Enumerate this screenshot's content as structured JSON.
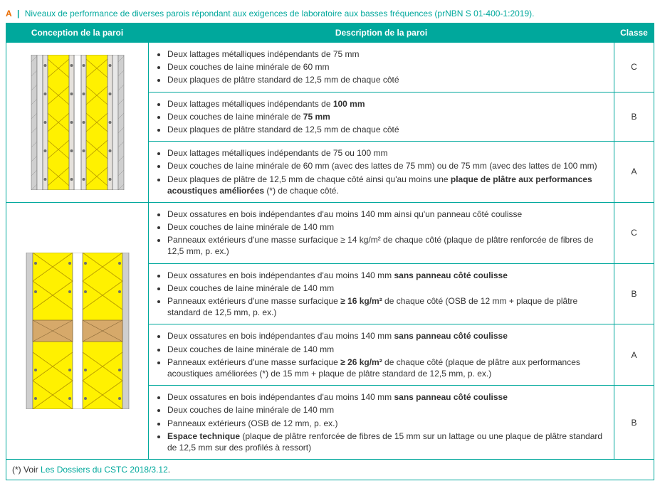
{
  "colors": {
    "teal": "#00a89c",
    "orange": "#e96c00",
    "text": "#333333",
    "insulation": "#fff100",
    "steel_stud": "#e5e1dc",
    "steel_stud_dot": "#707070",
    "wood": "#d6a96a",
    "plaster": "#cfcfcf",
    "background": "#ffffff"
  },
  "title": {
    "label": "A",
    "sep": "|",
    "text": "Niveaux de performance de diverses parois répondant aux exigences de laboratoire aux basses fréquences (prNBN S 01-400-1:2019)."
  },
  "headers": {
    "conception": "Conception de la paroi",
    "description": "Description de la paroi",
    "classe": "Classe"
  },
  "rows": [
    {
      "items": [
        "Deux lattages métalliques indépendants de 75 mm",
        "Deux couches de laine minérale de 60 mm",
        "Deux plaques de plâtre standard de 12,5 mm de chaque côté"
      ],
      "classe": "C"
    },
    {
      "items": [
        "Deux lattages métalliques indépendants de <b>100 mm</b>",
        "Deux couches de laine minérale de <b>75 mm</b>",
        "Deux plaques de plâtre standard de 12,5 mm de chaque côté"
      ],
      "classe": "B"
    },
    {
      "items": [
        "Deux lattages métalliques indépendants de 75 ou 100 mm",
        "Deux couches de laine minérale de 60 mm (avec des lattes de 75 mm) ou de 75 mm (avec des lattes de 100 mm)",
        "Deux plaques de plâtre de 12,5 mm de chaque côté ainsi qu'au moins une <b>plaque de plâtre aux performances acoustiques améliorées</b> (*) de chaque côté."
      ],
      "classe": "A"
    },
    {
      "items": [
        "Deux ossatures en bois indépendantes d'au moins 140 mm ainsi qu'un panneau côté coulisse",
        "Deux couches de laine minérale de 140 mm",
        "Panneaux extérieurs d'une masse surfacique ≥ 14 kg/m² de chaque côté (plaque de plâtre renforcée de fibres de 12,5 mm, p. ex.)"
      ],
      "classe": "C"
    },
    {
      "items": [
        "Deux ossatures en bois indépendantes d'au moins 140 mm <b>sans panneau côté coulisse</b>",
        "Deux couches de laine minérale de 140 mm",
        "Panneaux extérieurs d'une masse surfacique <b>≥ 16 kg/m²</b> de chaque côté (OSB de 12 mm + plaque de plâtre standard de 12,5 mm, p. ex.)"
      ],
      "classe": "B"
    },
    {
      "items": [
        "Deux ossatures en bois indépendantes d'au moins 140 mm <b>sans panneau côté coulisse</b>",
        "Deux couches de laine minérale de 140 mm",
        "Panneaux extérieurs d'une masse surfacique <b>≥ 26 kg/m²</b> de chaque côté (plaque de plâtre aux performances acoustiques améliorées (*) de 15 mm + plaque de plâtre standard de 12,5 mm, p. ex.)"
      ],
      "classe": "A"
    },
    {
      "items": [
        "Deux ossatures en bois indépendantes d'au moins 140 mm <b>sans panneau côté coulisse</b>",
        "Deux couches de laine minérale de 140 mm",
        "Panneaux extérieurs (OSB de 12 mm, p. ex.)",
        "<b>Espace technique</b> (plaque de plâtre renforcée de fibres de 15 mm sur un lattage ou une plaque de plâtre standard de 12,5 mm sur des profilés à ressort)"
      ],
      "classe": "B"
    }
  ],
  "footnote": {
    "prefix": "(*)  Voir ",
    "link_text": "Les Dossiers du CSTC 2018/3.12",
    "suffix": "."
  }
}
